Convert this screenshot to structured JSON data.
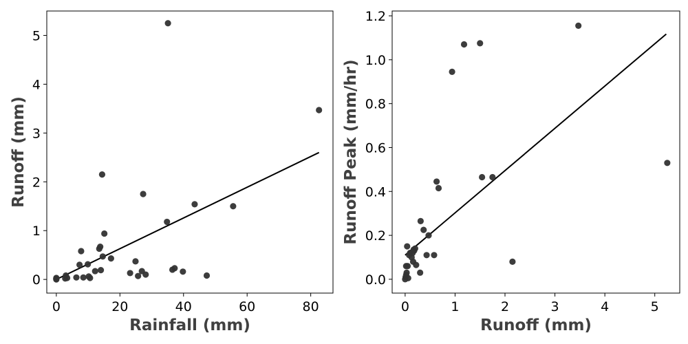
{
  "chart_data": [
    {
      "type": "scatter",
      "title": "",
      "xlabel": "Rainfall (mm)",
      "ylabel": "Runoff (mm)",
      "xlim": [
        -3,
        87
      ],
      "ylim": [
        -0.28,
        5.5
      ],
      "xticks": [
        0,
        20,
        40,
        60,
        80
      ],
      "yticks": [
        0,
        1,
        2,
        3,
        4,
        5
      ],
      "grid": false,
      "point_color": "#333333",
      "line_color": "#000000",
      "x": [
        0,
        0,
        0,
        0,
        2.8,
        3.0,
        3.4,
        6.3,
        7.3,
        7.8,
        8.5,
        9.9,
        10.2,
        10.6,
        12.2,
        13.5,
        13.8,
        14.0,
        14.4,
        14.6,
        15.1,
        17.2,
        23.2,
        24.9,
        25.7,
        26.9,
        27.3,
        28.1,
        34.8,
        35.1,
        36.5,
        37.2,
        39.8,
        43.5,
        47.3,
        55.6,
        82.6
      ],
      "y": [
        0.0,
        0.01,
        0.02,
        0.03,
        0.02,
        0.08,
        0.03,
        0.04,
        0.3,
        0.58,
        0.04,
        0.31,
        0.06,
        0.03,
        0.17,
        0.63,
        0.67,
        0.19,
        2.15,
        0.47,
        0.94,
        0.43,
        0.13,
        0.37,
        0.07,
        0.17,
        1.75,
        0.1,
        1.18,
        5.25,
        0.2,
        0.23,
        0.16,
        1.54,
        0.08,
        1.5,
        3.47
      ],
      "fit_line": {
        "x": [
          0,
          82.6
        ],
        "y": [
          0.0,
          2.6
        ]
      }
    },
    {
      "type": "scatter",
      "title": "",
      "xlabel": "Runoff (mm)",
      "ylabel": "Runoff Peak (mm/hr)",
      "xlim": [
        -0.26,
        5.5
      ],
      "ylim": [
        -0.063,
        1.222
      ],
      "xticks": [
        0,
        1,
        2,
        3,
        4,
        5
      ],
      "yticks": [
        0.0,
        0.2,
        0.4,
        0.6,
        0.8,
        1.0,
        1.2
      ],
      "ytick_labels": [
        "0.0",
        "0.2",
        "0.4",
        "0.6",
        "0.8",
        "1.0",
        "1.2"
      ],
      "grid": false,
      "point_color": "#333333",
      "line_color": "#000000",
      "x": [
        0.0,
        0.01,
        0.02,
        0.02,
        0.03,
        0.04,
        0.05,
        0.06,
        0.08,
        0.1,
        0.13,
        0.15,
        0.16,
        0.17,
        0.18,
        0.2,
        0.22,
        0.3,
        0.31,
        0.37,
        0.43,
        0.47,
        0.58,
        0.63,
        0.67,
        0.94,
        1.18,
        1.5,
        1.54,
        1.75,
        2.15,
        3.47,
        5.25
      ],
      "y": [
        0.0,
        0.01,
        0.02,
        0.06,
        0.03,
        0.15,
        0.06,
        0.005,
        0.11,
        0.12,
        0.1,
        0.12,
        0.08,
        0.135,
        0.13,
        0.14,
        0.065,
        0.03,
        0.265,
        0.225,
        0.11,
        0.2,
        0.11,
        0.445,
        0.415,
        0.945,
        1.07,
        1.075,
        0.465,
        0.465,
        0.08,
        1.155,
        0.53
      ],
      "fit_line": {
        "x": [
          0,
          5.23
        ],
        "y": [
          0.11,
          1.117
        ]
      }
    }
  ]
}
